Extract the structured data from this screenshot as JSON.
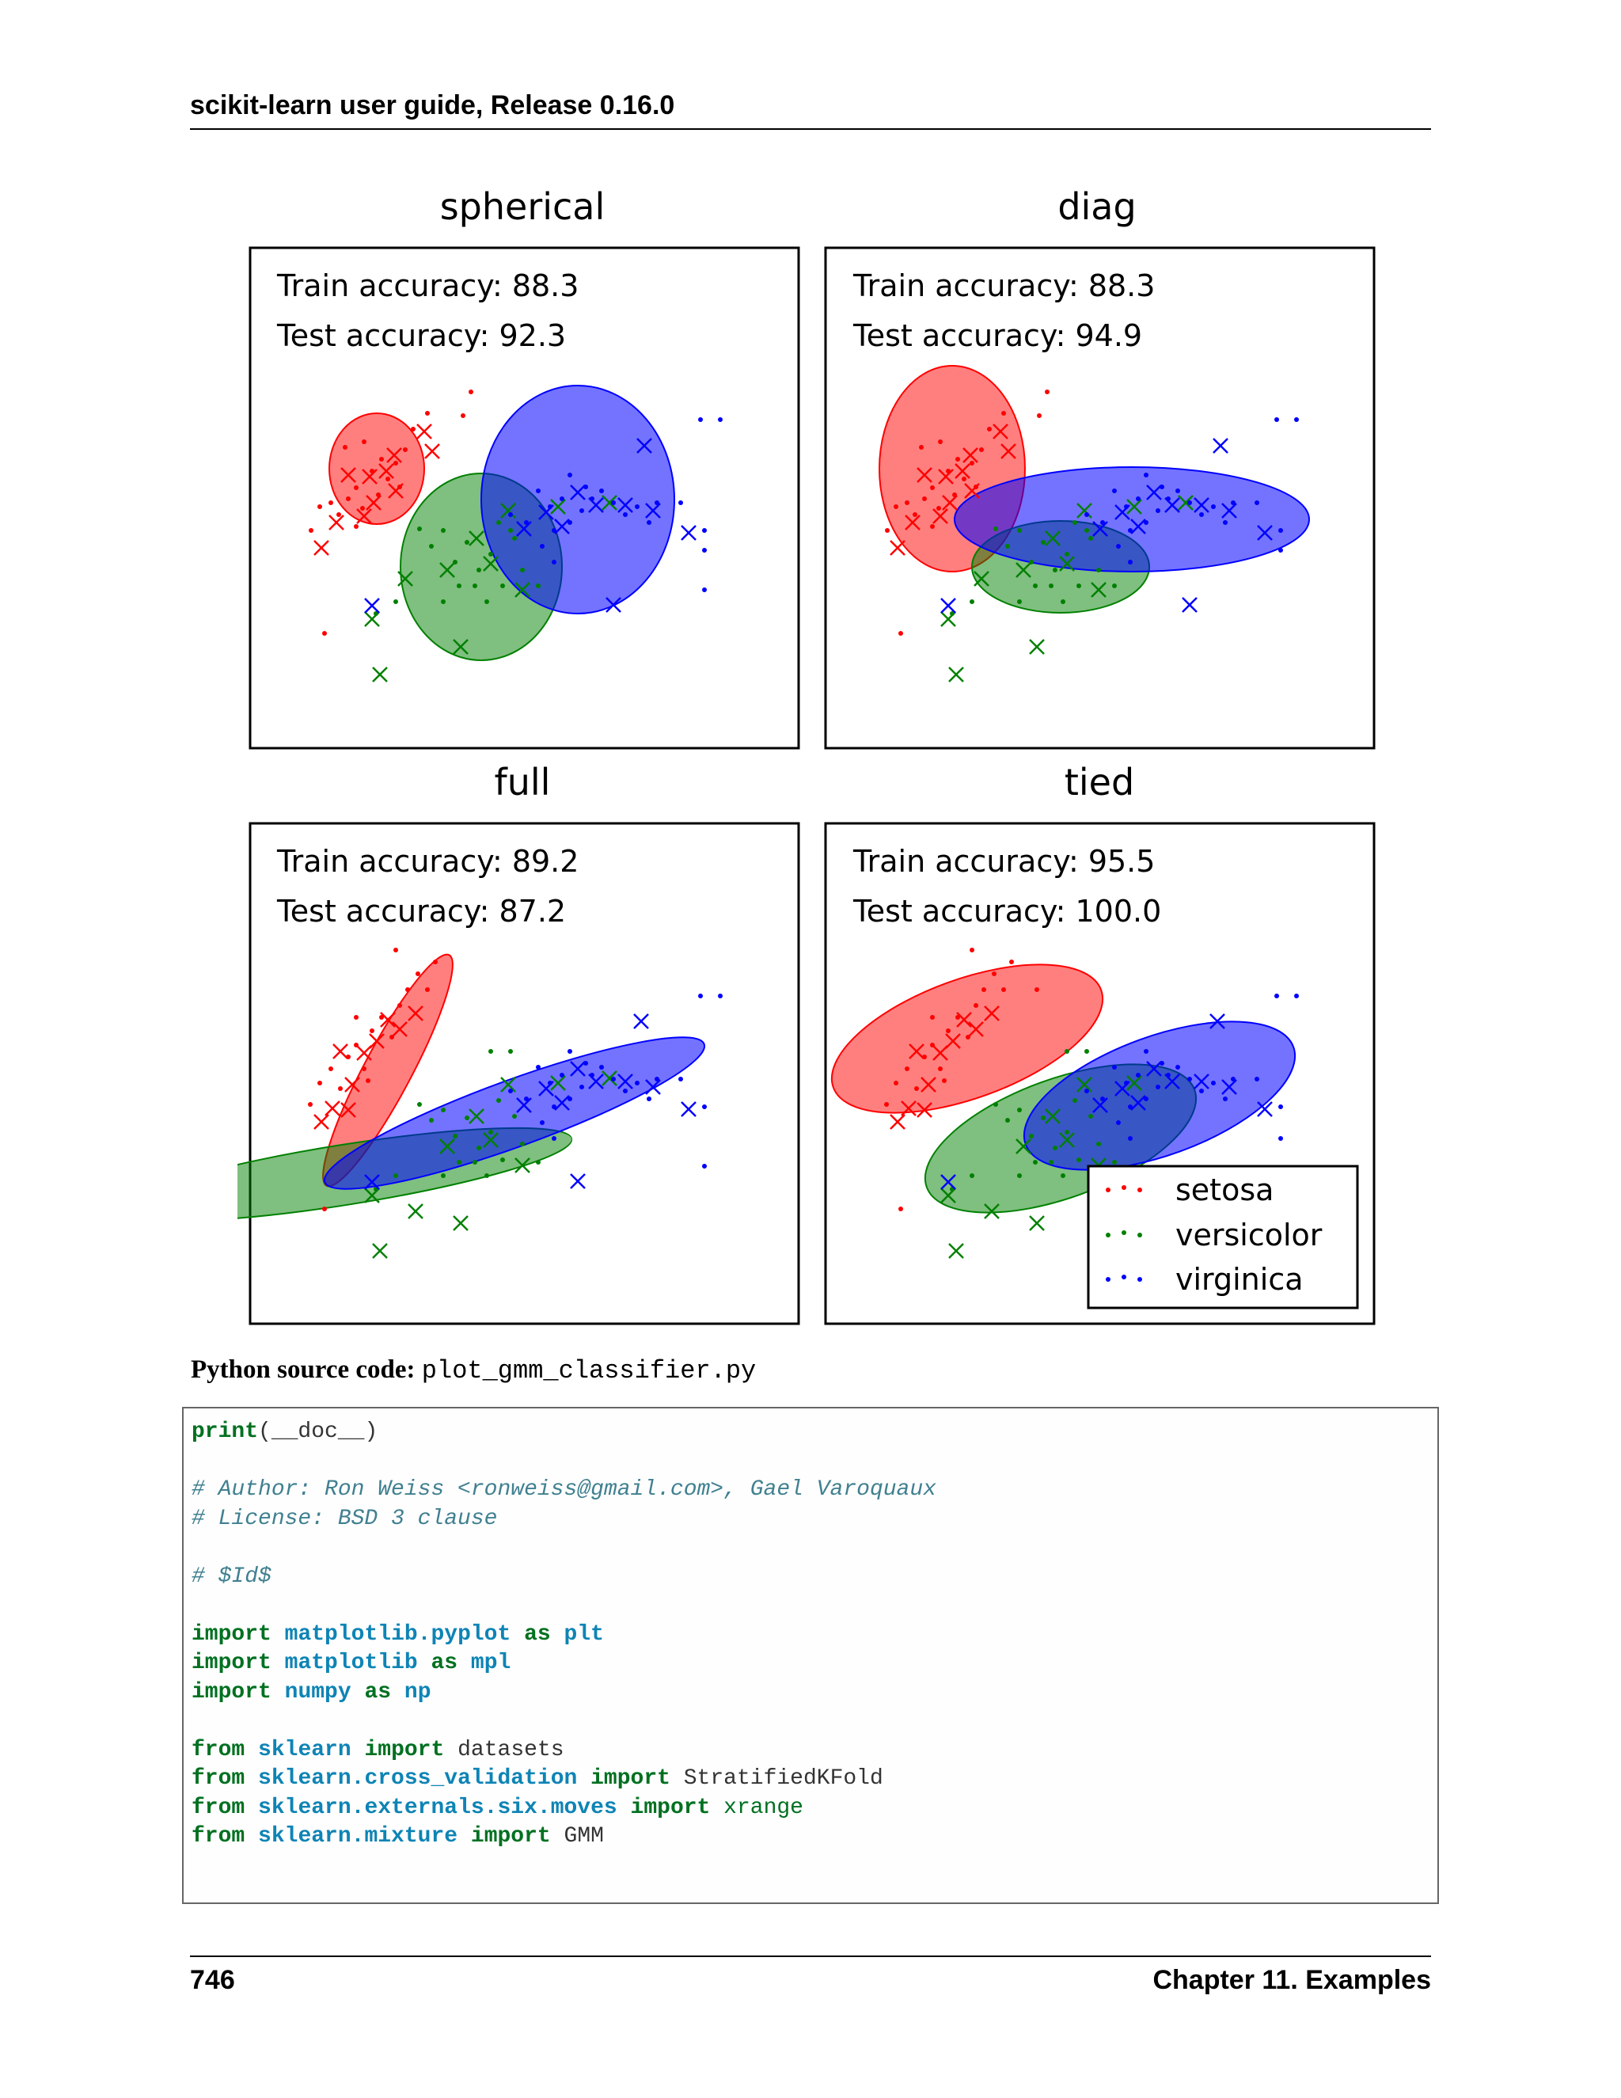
{
  "header": {
    "title": "scikit-learn user guide, Release 0.16.0"
  },
  "figure": {
    "panels": [
      {
        "title": "spherical",
        "train": "Train accuracy: 88.3",
        "test": "Test accuracy: 92.3"
      },
      {
        "title": "diag",
        "train": "Train accuracy: 88.3",
        "test": "Test accuracy: 94.9"
      },
      {
        "title": "full",
        "train": "Train accuracy: 89.2",
        "test": "Test accuracy: 87.2"
      },
      {
        "title": "tied",
        "train": "Train accuracy: 95.5",
        "test": "Test accuracy: 100.0"
      }
    ],
    "legend": [
      "setosa",
      "versicolor",
      "virginica"
    ],
    "colors": {
      "setosa": "#ff0000",
      "versicolor": "#008000",
      "virginica": "#0000ff"
    }
  },
  "source": {
    "label": "Python source code:",
    "filename": "plot_gmm_classifier.py"
  },
  "code": {
    "l1_kw": "print",
    "l1_rest": "(__doc__)",
    "l3": "# Author: Ron Weiss <ronweiss@gmail.com>, Gael Varoquaux",
    "l4": "# License: BSD 3 clause",
    "l6": "# $Id$",
    "import_kw": "import",
    "as_kw": "as",
    "from_kw": "from",
    "m1": "matplotlib.pyplot",
    "a1": "plt",
    "m2": "matplotlib",
    "a2": "mpl",
    "m3": "numpy",
    "a3": "np",
    "f1": "sklearn",
    "n1": "datasets",
    "f2": "sklearn.cross_validation",
    "n2": "StratifiedKFold",
    "f3": "sklearn.externals.six.moves",
    "n3": "xrange",
    "f4": "sklearn.mixture",
    "n4": "GMM"
  },
  "footer": {
    "page": "746",
    "chapter": "Chapter 11.  Examples"
  }
}
